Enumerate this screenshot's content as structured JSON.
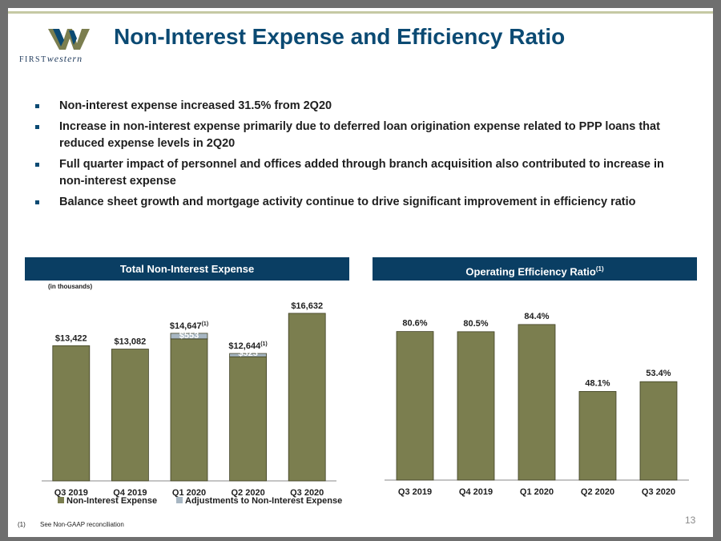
{
  "slide": {
    "title": "Non-Interest Expense and Efficiency Ratio",
    "logo": {
      "brand_small": "FIRST",
      "brand_rest": "western"
    },
    "bullets": [
      "Non-interest expense increased 31.5% from 2Q20",
      "Increase in non-interest expense primarily due to deferred loan origination expense related to PPP loans that reduced expense levels in 2Q20",
      "Full quarter impact of personnel and offices added through branch acquisition also contributed to increase in non-interest expense",
      "Balance sheet growth and mortgage activity continue to drive significant improvement in efficiency ratio"
    ],
    "left_panel": {
      "header": "Total Non-Interest Expense",
      "units": "(in thousands)"
    },
    "right_panel": {
      "header": "Operating Efficiency Ratio",
      "header_sup": "(1)"
    },
    "footnote": {
      "marker": "(1)",
      "text": "See Non-GAAP reconciliation"
    },
    "page_number": "13",
    "colors": {
      "bar": "#7b7e4f",
      "adjustment": "#a7b6c2",
      "header": "#0a3e63",
      "title": "#0b4a73"
    }
  },
  "chart_data": [
    {
      "type": "bar",
      "stacked": true,
      "categories": [
        "Q3 2019",
        "Q4 2019",
        "Q1 2020",
        "Q2 2020",
        "Q3 2020"
      ],
      "series": [
        {
          "name": "Non-Interest Expense",
          "values": [
            13422,
            13082,
            14094,
            12321,
            16632
          ],
          "color": "#7b7e4f"
        },
        {
          "name": "Adjustments to Non-Interest Expense",
          "values": [
            0,
            0,
            553,
            323,
            0
          ],
          "color": "#a7b6c2",
          "labels": [
            "",
            "",
            "$553",
            "$323",
            ""
          ]
        }
      ],
      "total_labels": [
        "$13,422",
        "$13,082",
        "$14,647",
        "$12,644",
        "$16,632"
      ],
      "total_label_sups": [
        "",
        "",
        "(1)",
        "(1)",
        ""
      ],
      "ylim": [
        0,
        17500
      ],
      "legend": "bottom",
      "grid": false
    },
    {
      "type": "bar",
      "categories": [
        "Q3 2019",
        "Q4 2019",
        "Q1 2020",
        "Q2 2020",
        "Q3 2020"
      ],
      "values": [
        80.6,
        80.5,
        84.4,
        48.1,
        53.4
      ],
      "labels": [
        "80.6%",
        "80.5%",
        "84.4%",
        "48.1%",
        "53.4%"
      ],
      "ylim": [
        0,
        100
      ],
      "color": "#7b7e4f",
      "grid": false
    }
  ]
}
